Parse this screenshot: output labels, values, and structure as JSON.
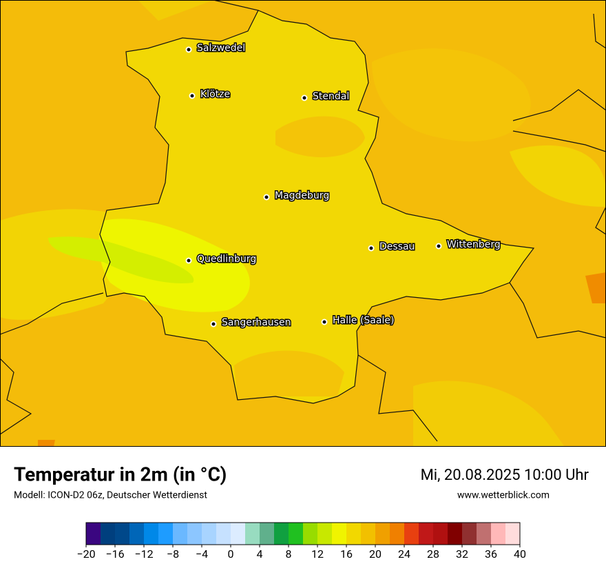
{
  "map": {
    "cities": [
      "Salzwedel",
      "Klötze",
      "Stendal",
      "Magdeburg",
      "Dessau",
      "Wittenberg",
      "Quedlinburg",
      "Sangerhausen",
      "Halle (Saale)"
    ]
  },
  "footer": {
    "title": "Temperatur in 2m (in °C)",
    "subtitle": "Modell: ICON-D2 06z, Deutscher Wetterdienst",
    "date": "Mi, 20.08.2025 10:00 Uhr",
    "website": "www.wetterblick.com"
  },
  "colorbar": {
    "lim": [
      -20,
      40
    ],
    "levels": [
      -20,
      -18,
      -16,
      -14,
      -12,
      -10,
      -8,
      -6,
      -4,
      -2,
      0,
      2,
      4,
      6,
      8,
      10,
      12,
      14,
      16,
      18,
      20,
      22,
      24,
      26,
      28,
      30,
      32,
      34,
      36,
      38,
      40
    ],
    "colors": [
      "#3a0680",
      "#003f7e",
      "#00488a",
      "#0066b8",
      "#0088e8",
      "#1e9cff",
      "#6ab8ff",
      "#8cc6ff",
      "#a8d4ff",
      "#c6e1ff",
      "#dcecff",
      "#98dcc0",
      "#60b08c",
      "#10a040",
      "#20c020",
      "#98dc00",
      "#c8e800",
      "#f0f400",
      "#f2d800",
      "#f2c000",
      "#f0a000",
      "#f08000",
      "#e84010",
      "#c01818",
      "#b01010",
      "#800000",
      "#903030",
      "#c07070",
      "#ffb8b8",
      "#ffdcdc"
    ],
    "ticks": [
      {
        "value": -20,
        "label": "−20"
      },
      {
        "value": -16,
        "label": "−16"
      },
      {
        "value": -12,
        "label": "−12"
      },
      {
        "value": -8,
        "label": "−8"
      },
      {
        "value": -4,
        "label": "−4"
      },
      0,
      4,
      8,
      12,
      16,
      20,
      24,
      28,
      32,
      36,
      40
    ]
  }
}
